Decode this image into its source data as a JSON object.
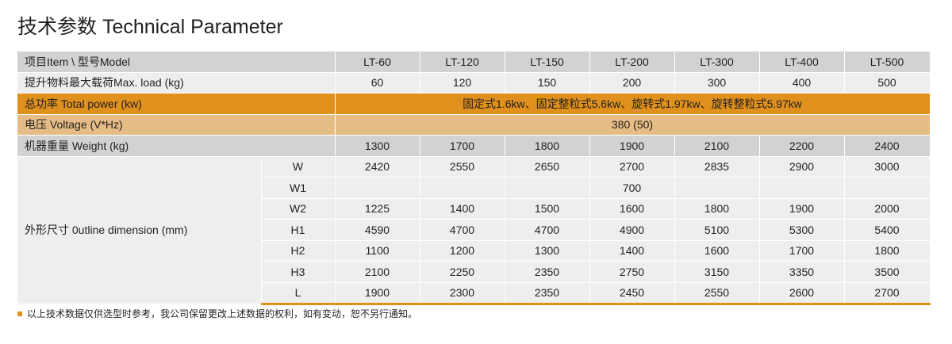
{
  "title": "技术参数 Technical Parameter",
  "header": {
    "label": "项目Item \\ 型号Model",
    "models": [
      "LT-60",
      "LT-120",
      "LT-150",
      "LT-200",
      "LT-300",
      "LT-400",
      "LT-500"
    ]
  },
  "max_load": {
    "label": "提升物料最大载荷Max. load (kg)",
    "values": [
      "60",
      "120",
      "150",
      "200",
      "300",
      "400",
      "500"
    ]
  },
  "total_power": {
    "label": "总功率 Total power (kw)",
    "value": "固定式1.6kw、固定整粒式5.6kw、旋转式1.97kw、旋转整粒式5.97kw"
  },
  "voltage": {
    "label": "电压 Voltage (V*Hz)",
    "value": "380 (50)"
  },
  "weight": {
    "label": "机器重量 Weight (kg)",
    "values": [
      "1300",
      "1700",
      "1800",
      "1900",
      "2100",
      "2200",
      "2400"
    ]
  },
  "dimensions": {
    "label": "外形尺寸 0utline dimension (mm)",
    "rows": [
      {
        "name": "W",
        "values": [
          "2420",
          "2550",
          "2650",
          "2700",
          "2835",
          "2900",
          "3000"
        ]
      },
      {
        "name": "W1",
        "values": [
          "",
          "",
          "",
          "700",
          "",
          "",
          ""
        ]
      },
      {
        "name": "W2",
        "values": [
          "1225",
          "1400",
          "1500",
          "1600",
          "1800",
          "1900",
          "2000"
        ]
      },
      {
        "name": "H1",
        "values": [
          "4590",
          "4700",
          "4700",
          "4900",
          "5100",
          "5300",
          "5400"
        ]
      },
      {
        "name": "H2",
        "values": [
          "1100",
          "1200",
          "1300",
          "1400",
          "1600",
          "1700",
          "1800"
        ]
      },
      {
        "name": "H3",
        "values": [
          "2100",
          "2250",
          "2350",
          "2750",
          "3150",
          "3350",
          "3500"
        ]
      },
      {
        "name": "L",
        "values": [
          "1900",
          "2300",
          "2350",
          "2450",
          "2550",
          "2600",
          "2700"
        ]
      }
    ]
  },
  "note": "以上技术数据仅供选型时参考，我公司保留更改上述数据的权利，如有变动，恕不另行通知。",
  "colors": {
    "accent": "#e0901c",
    "tan": "#e5bc86",
    "gray": "#d1d2d3",
    "light": "#eeeeef"
  }
}
